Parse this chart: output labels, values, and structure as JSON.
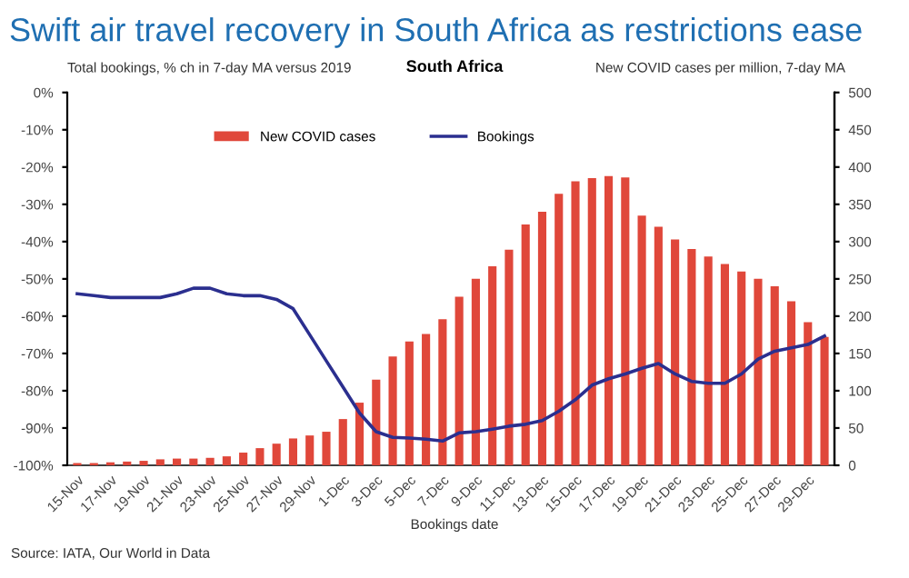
{
  "chart_data": {
    "type": "bar",
    "title": "Swift air travel recovery in South Africa as restrictions ease",
    "subtitle": "South Africa",
    "ylabel": "Total bookings, % ch in 7-day MA versus 2019",
    "y2label": "New COVID cases per million, 7-day MA",
    "xlabel": "Bookings date",
    "annotations": [
      "Source: IATA, Our World in Data"
    ],
    "categories": [
      "15-Nov",
      null,
      "17-Nov",
      null,
      "19-Nov",
      null,
      "21-Nov",
      null,
      "23-Nov",
      null,
      "25-Nov",
      null,
      "27-Nov",
      null,
      "29-Nov",
      null,
      "1-Dec",
      null,
      "3-Dec",
      null,
      "5-Dec",
      null,
      "7-Dec",
      null,
      "9-Dec",
      null,
      "11-Dec",
      null,
      "13-Dec",
      null,
      "15-Dec",
      null,
      "17-Dec",
      null,
      "19-Dec",
      null,
      "21-Dec",
      null,
      "23-Dec",
      null,
      "25-Dec",
      null,
      "27-Dec",
      null,
      "29-Dec",
      null
    ],
    "series": [
      {
        "name": "New COVID cases",
        "axis": "y2",
        "color": "#e0473a",
        "values": [
          3,
          3,
          4,
          5,
          6,
          8,
          9,
          9,
          10,
          12,
          17,
          23,
          29,
          36,
          40,
          45,
          62,
          84,
          115,
          146,
          166,
          176,
          196,
          226,
          250,
          267,
          289,
          323,
          340,
          364,
          381,
          385,
          388,
          386,
          335,
          320,
          303,
          290,
          280,
          270,
          260,
          250,
          240,
          220,
          192,
          172
        ]
      },
      {
        "name": "Bookings",
        "type": "line",
        "color": "#2b2f8f",
        "values": [
          -54,
          -54.5,
          -55,
          -55,
          -55,
          -55,
          -54,
          -52.5,
          -52.5,
          -54,
          -54.5,
          -54.5,
          -55.5,
          -58,
          -65,
          -72,
          -79,
          -86,
          -91,
          -92.5,
          -92.7,
          -93,
          -93.5,
          -91.3,
          -91,
          -90.3,
          -89.5,
          -89,
          -88,
          -85.5,
          -82.4,
          -78.5,
          -76.8,
          -75.5,
          -74,
          -72.7,
          -75.5,
          -77.5,
          -78,
          -78,
          -75.5,
          -71.5,
          -69.4,
          -68.5,
          -67.6,
          -65.3
        ]
      }
    ],
    "ylim": [
      -100,
      0
    ],
    "yticks": [
      {
        "value": -100,
        "label": "-100%"
      },
      {
        "value": -90,
        "label": "-90%"
      },
      {
        "value": -80,
        "label": "-80%"
      },
      {
        "value": -70,
        "label": "-70%"
      },
      {
        "value": -60,
        "label": "-60%"
      },
      {
        "value": -50,
        "label": "-50%"
      },
      {
        "value": -40,
        "label": "-40%"
      },
      {
        "value": -30,
        "label": "-30%"
      },
      {
        "value": -20,
        "label": "-20%"
      },
      {
        "value": -10,
        "label": "-10%"
      },
      {
        "value": 0,
        "label": "0%"
      }
    ],
    "y2lim": [
      0,
      500
    ],
    "y2ticks": [
      0,
      50,
      100,
      150,
      200,
      250,
      300,
      350,
      400,
      450,
      500
    ],
    "legend": "top",
    "grid": false
  }
}
